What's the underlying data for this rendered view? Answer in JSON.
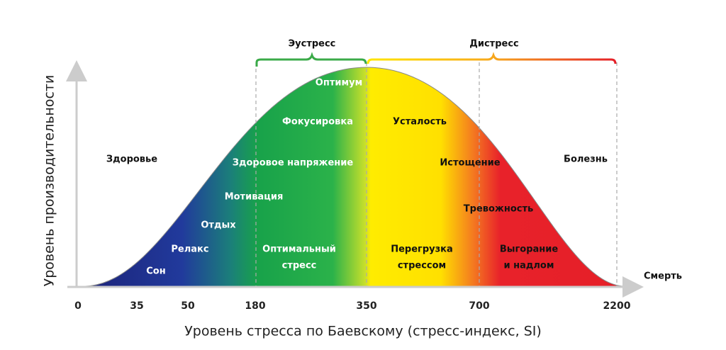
{
  "header": {
    "eustress": "Эустресс",
    "distress": "Дистресс"
  },
  "axes": {
    "y_title": "Уровень производительности",
    "x_title": "Уровень стресса по Баевскому (стресс-индекс, SI)",
    "end_label": "Смерть",
    "ticks": [
      "0",
      "35",
      "50",
      "180",
      "350",
      "700",
      "2200"
    ]
  },
  "zones": {
    "health": "Здоровье",
    "illness": "Болезнь"
  },
  "curve_labels": {
    "optimum": "Оптимум",
    "focus": "Фокусировка",
    "fatigue": "Усталость",
    "healthy_tension": "Здоровое напряжение",
    "exhaustion": "Истощение",
    "motivation": "Мотивация",
    "anxiety": "Тревожность",
    "rest": "Отдых",
    "relax": "Релакс",
    "sleep": "Сон",
    "optimal_stress": [
      "Оптимальный",
      "стресс"
    ],
    "overload": [
      "Перегрузка",
      "стрессом"
    ],
    "burnout": [
      "Выгорание",
      "и надлом"
    ]
  }
}
